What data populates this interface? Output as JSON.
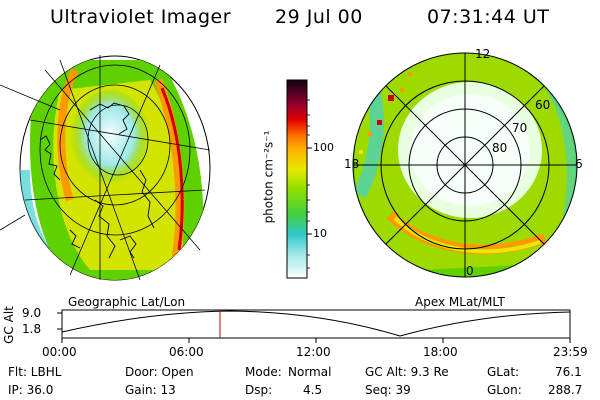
{
  "header": {
    "title": "Ultraviolet Imager",
    "date": "29 Jul 00",
    "time": "07:31:44 UT"
  },
  "colorbar": {
    "unit_label": "photon cm⁻²s⁻¹",
    "ticks": [
      "100",
      "10"
    ]
  },
  "left_panel": {
    "caption": "Geographic Lat/Lon"
  },
  "right_panel": {
    "caption": "Apex MLat/MLT",
    "mlt_labels": {
      "top": "12",
      "left": "18",
      "right": "6",
      "bottom": "0"
    },
    "lat_labels": [
      "60",
      "70",
      "80"
    ]
  },
  "altitude_plot": {
    "ylabel": "GC Alt",
    "yticks": [
      "9.0",
      "1.8"
    ],
    "xticks": [
      "00:00",
      "06:00",
      "12:00",
      "18:00",
      "23:59"
    ],
    "marker_time": "07:31"
  },
  "info": {
    "filter": "Flt: LBHL",
    "ip": "IP: 36.0",
    "door": "Door: Open",
    "gain": "Gain: 13",
    "mode_label": "Mode:",
    "mode_value": "Normal",
    "dsp_label": "Dsp:",
    "dsp_value": "4.5",
    "gc_alt": "GC Alt: 9.3 Re",
    "seq": "Seq: 39",
    "glat_label": "GLat:",
    "glat_value": "76.1",
    "glon_label": "GLon:",
    "glon_value": "288.7"
  },
  "colors": {
    "green": "#5fd000",
    "yellow": "#e8e800",
    "cyan": "#40d0d0",
    "orange": "#ff9900",
    "red": "#d00000",
    "marker": "#d00000"
  }
}
